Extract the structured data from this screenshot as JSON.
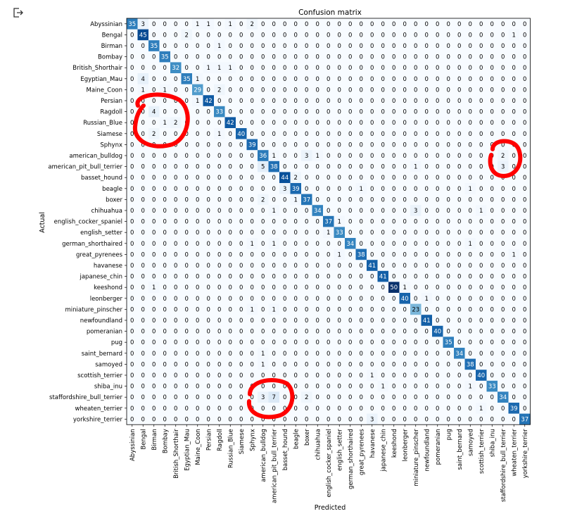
{
  "toolbar": {
    "output_icon": "output-exit-icon"
  },
  "annotation": {
    "color": "#ff0000",
    "shape": "hand-drawn-circle",
    "count": 3
  },
  "chart_data": {
    "type": "heatmap",
    "title": "Confusion matrix",
    "xlabel": "Predicted",
    "ylabel": "Actual",
    "colormap": "Blues",
    "labels": [
      "Abyssinian",
      "Bengal",
      "Birman",
      "Bombay",
      "British_Shorthair",
      "Egyptian_Mau",
      "Maine_Coon",
      "Persian",
      "Ragdoll",
      "Russian_Blue",
      "Siamese",
      "Sphynx",
      "american_bulldog",
      "american_pit_bull_terrier",
      "basset_hound",
      "beagle",
      "boxer",
      "chihuahua",
      "english_cocker_spaniel",
      "english_setter",
      "german_shorthaired",
      "great_pyrenees",
      "havanese",
      "japanese_chin",
      "keeshond",
      "leonberger",
      "miniature_pinscher",
      "newfoundland",
      "pomeranian",
      "pug",
      "saint_bernard",
      "samoyed",
      "scottish_terrier",
      "shiba_inu",
      "staffordshire_bull_terrier",
      "wheaten_terrier",
      "yorkshire_terrier"
    ],
    "matrix": [
      [
        35,
        3,
        0,
        0,
        0,
        0,
        1,
        1,
        0,
        1,
        0,
        2,
        0,
        0,
        0,
        0,
        0,
        0,
        0,
        0,
        0,
        0,
        0,
        0,
        0,
        0,
        0,
        0,
        0,
        0,
        0,
        0,
        0,
        0,
        0,
        0,
        0
      ],
      [
        0,
        45,
        0,
        0,
        0,
        2,
        0,
        0,
        0,
        0,
        0,
        0,
        0,
        0,
        0,
        0,
        0,
        0,
        0,
        0,
        0,
        0,
        0,
        0,
        0,
        0,
        0,
        0,
        0,
        0,
        0,
        0,
        0,
        0,
        0,
        1,
        0
      ],
      [
        0,
        0,
        35,
        0,
        0,
        0,
        0,
        0,
        1,
        0,
        0,
        0,
        0,
        0,
        0,
        0,
        0,
        0,
        0,
        0,
        0,
        0,
        0,
        0,
        0,
        0,
        0,
        0,
        0,
        0,
        0,
        0,
        0,
        0,
        0,
        0,
        0
      ],
      [
        0,
        0,
        0,
        35,
        0,
        0,
        0,
        0,
        0,
        0,
        0,
        0,
        0,
        0,
        0,
        0,
        0,
        0,
        0,
        0,
        0,
        0,
        0,
        0,
        0,
        0,
        0,
        0,
        0,
        0,
        0,
        0,
        0,
        0,
        0,
        0,
        0
      ],
      [
        0,
        0,
        0,
        0,
        32,
        0,
        0,
        1,
        1,
        1,
        0,
        0,
        0,
        0,
        0,
        0,
        0,
        0,
        0,
        0,
        0,
        0,
        0,
        0,
        0,
        0,
        0,
        0,
        0,
        0,
        0,
        0,
        0,
        0,
        0,
        0,
        0
      ],
      [
        0,
        4,
        0,
        0,
        0,
        35,
        1,
        0,
        0,
        0,
        0,
        0,
        0,
        0,
        0,
        0,
        0,
        0,
        0,
        0,
        0,
        0,
        0,
        0,
        0,
        0,
        0,
        0,
        0,
        0,
        0,
        0,
        0,
        0,
        0,
        0,
        0
      ],
      [
        0,
        1,
        0,
        1,
        0,
        0,
        29,
        0,
        2,
        0,
        0,
        0,
        0,
        0,
        0,
        0,
        0,
        0,
        0,
        0,
        0,
        0,
        0,
        0,
        0,
        0,
        0,
        0,
        0,
        0,
        0,
        0,
        0,
        0,
        0,
        0,
        0
      ],
      [
        0,
        0,
        0,
        0,
        0,
        0,
        1,
        42,
        0,
        0,
        0,
        0,
        0,
        0,
        0,
        0,
        0,
        0,
        0,
        0,
        0,
        0,
        0,
        0,
        0,
        0,
        0,
        0,
        0,
        0,
        0,
        0,
        0,
        0,
        0,
        0,
        0
      ],
      [
        0,
        0,
        4,
        0,
        0,
        0,
        0,
        0,
        33,
        0,
        0,
        0,
        0,
        0,
        0,
        0,
        0,
        0,
        0,
        0,
        0,
        0,
        0,
        0,
        0,
        0,
        0,
        0,
        0,
        0,
        0,
        0,
        0,
        0,
        0,
        0,
        0
      ],
      [
        0,
        0,
        0,
        1,
        2,
        0,
        0,
        0,
        0,
        42,
        0,
        0,
        0,
        0,
        0,
        0,
        0,
        0,
        0,
        0,
        0,
        0,
        0,
        0,
        0,
        0,
        0,
        0,
        0,
        0,
        0,
        0,
        0,
        0,
        0,
        0,
        0
      ],
      [
        0,
        0,
        2,
        0,
        0,
        0,
        0,
        0,
        1,
        0,
        40,
        0,
        0,
        0,
        0,
        0,
        0,
        0,
        0,
        0,
        0,
        0,
        0,
        0,
        0,
        0,
        0,
        0,
        0,
        0,
        0,
        0,
        0,
        0,
        0,
        0,
        0
      ],
      [
        0,
        0,
        0,
        0,
        0,
        0,
        0,
        0,
        0,
        0,
        0,
        39,
        0,
        0,
        0,
        0,
        0,
        0,
        0,
        0,
        0,
        0,
        0,
        0,
        0,
        0,
        0,
        0,
        0,
        0,
        0,
        0,
        0,
        0,
        0,
        0,
        0
      ],
      [
        0,
        0,
        0,
        0,
        0,
        0,
        0,
        0,
        0,
        0,
        0,
        0,
        36,
        1,
        0,
        0,
        3,
        1,
        0,
        0,
        0,
        0,
        0,
        0,
        0,
        0,
        0,
        0,
        0,
        0,
        0,
        0,
        0,
        0,
        2,
        0,
        0
      ],
      [
        0,
        0,
        0,
        0,
        0,
        0,
        0,
        0,
        0,
        0,
        0,
        0,
        5,
        38,
        0,
        0,
        0,
        0,
        0,
        0,
        0,
        0,
        0,
        0,
        0,
        0,
        1,
        0,
        0,
        0,
        0,
        0,
        0,
        0,
        3,
        0,
        0
      ],
      [
        0,
        0,
        0,
        0,
        0,
        0,
        0,
        0,
        0,
        0,
        0,
        0,
        0,
        0,
        44,
        2,
        0,
        0,
        0,
        0,
        0,
        0,
        0,
        0,
        0,
        0,
        0,
        0,
        0,
        0,
        0,
        0,
        0,
        0,
        0,
        0,
        0
      ],
      [
        0,
        0,
        0,
        0,
        0,
        0,
        0,
        0,
        0,
        0,
        0,
        0,
        0,
        0,
        3,
        39,
        0,
        0,
        0,
        0,
        0,
        1,
        0,
        0,
        0,
        0,
        0,
        0,
        0,
        0,
        0,
        1,
        0,
        0,
        0,
        0,
        0
      ],
      [
        0,
        0,
        0,
        0,
        0,
        0,
        0,
        0,
        0,
        0,
        0,
        0,
        2,
        0,
        0,
        1,
        37,
        0,
        0,
        0,
        0,
        0,
        0,
        0,
        0,
        0,
        0,
        0,
        0,
        0,
        0,
        0,
        0,
        0,
        0,
        0,
        0
      ],
      [
        0,
        0,
        0,
        0,
        0,
        0,
        0,
        0,
        0,
        0,
        0,
        0,
        0,
        1,
        0,
        0,
        0,
        34,
        0,
        0,
        0,
        0,
        0,
        0,
        0,
        0,
        3,
        0,
        0,
        0,
        0,
        0,
        1,
        0,
        0,
        0,
        0
      ],
      [
        0,
        0,
        0,
        0,
        0,
        0,
        0,
        0,
        0,
        0,
        0,
        0,
        0,
        0,
        0,
        0,
        0,
        0,
        37,
        1,
        0,
        0,
        0,
        0,
        0,
        0,
        0,
        0,
        0,
        0,
        0,
        0,
        0,
        0,
        0,
        0,
        0
      ],
      [
        0,
        0,
        0,
        0,
        0,
        0,
        0,
        0,
        0,
        0,
        0,
        0,
        0,
        0,
        0,
        0,
        0,
        0,
        1,
        33,
        0,
        0,
        0,
        0,
        0,
        0,
        0,
        0,
        0,
        0,
        0,
        0,
        0,
        0,
        0,
        0,
        0
      ],
      [
        0,
        0,
        0,
        0,
        0,
        0,
        0,
        0,
        0,
        0,
        0,
        1,
        0,
        1,
        0,
        0,
        0,
        0,
        0,
        0,
        34,
        0,
        0,
        0,
        0,
        0,
        0,
        0,
        0,
        0,
        0,
        1,
        0,
        0,
        0,
        0,
        0
      ],
      [
        0,
        0,
        0,
        0,
        0,
        0,
        0,
        0,
        0,
        0,
        0,
        0,
        0,
        0,
        0,
        0,
        0,
        0,
        0,
        1,
        0,
        38,
        0,
        0,
        0,
        0,
        0,
        0,
        0,
        0,
        0,
        0,
        0,
        0,
        0,
        1,
        0
      ],
      [
        0,
        0,
        0,
        0,
        0,
        0,
        0,
        0,
        0,
        0,
        0,
        0,
        0,
        0,
        0,
        0,
        0,
        0,
        0,
        0,
        0,
        0,
        41,
        0,
        0,
        0,
        0,
        0,
        0,
        0,
        0,
        0,
        0,
        0,
        0,
        0,
        0
      ],
      [
        0,
        0,
        0,
        0,
        0,
        0,
        0,
        0,
        0,
        0,
        0,
        0,
        0,
        0,
        0,
        0,
        0,
        0,
        0,
        0,
        0,
        0,
        0,
        41,
        0,
        0,
        0,
        0,
        0,
        0,
        0,
        0,
        0,
        0,
        0,
        0,
        0
      ],
      [
        0,
        0,
        1,
        0,
        0,
        0,
        0,
        0,
        0,
        0,
        0,
        0,
        0,
        0,
        0,
        0,
        0,
        0,
        0,
        0,
        0,
        0,
        0,
        0,
        50,
        1,
        0,
        0,
        0,
        0,
        0,
        0,
        0,
        0,
        0,
        0,
        0
      ],
      [
        0,
        0,
        0,
        0,
        0,
        0,
        0,
        0,
        0,
        0,
        0,
        0,
        0,
        0,
        0,
        0,
        0,
        0,
        0,
        0,
        0,
        0,
        0,
        0,
        0,
        40,
        0,
        1,
        0,
        0,
        0,
        0,
        0,
        0,
        0,
        0,
        0
      ],
      [
        0,
        0,
        0,
        0,
        0,
        0,
        0,
        0,
        0,
        0,
        0,
        1,
        0,
        1,
        0,
        0,
        0,
        0,
        0,
        0,
        0,
        0,
        0,
        0,
        0,
        0,
        23,
        0,
        0,
        0,
        0,
        0,
        0,
        0,
        0,
        0,
        0
      ],
      [
        0,
        0,
        0,
        0,
        0,
        0,
        0,
        0,
        0,
        0,
        0,
        0,
        0,
        0,
        0,
        0,
        0,
        0,
        0,
        0,
        0,
        0,
        0,
        0,
        0,
        0,
        0,
        41,
        0,
        0,
        0,
        0,
        0,
        0,
        0,
        0,
        0
      ],
      [
        0,
        0,
        0,
        0,
        0,
        0,
        0,
        0,
        0,
        0,
        0,
        0,
        0,
        0,
        0,
        0,
        0,
        0,
        0,
        0,
        0,
        0,
        0,
        0,
        0,
        0,
        0,
        0,
        40,
        0,
        0,
        0,
        0,
        0,
        0,
        0,
        0
      ],
      [
        0,
        0,
        0,
        0,
        0,
        0,
        0,
        0,
        0,
        0,
        0,
        0,
        0,
        0,
        0,
        0,
        0,
        0,
        0,
        0,
        0,
        0,
        0,
        0,
        0,
        0,
        0,
        0,
        0,
        35,
        0,
        0,
        0,
        0,
        0,
        0,
        0
      ],
      [
        0,
        0,
        0,
        0,
        0,
        0,
        0,
        0,
        0,
        0,
        0,
        0,
        1,
        0,
        0,
        0,
        0,
        0,
        0,
        0,
        0,
        0,
        0,
        0,
        0,
        0,
        0,
        0,
        0,
        0,
        34,
        0,
        0,
        0,
        0,
        0,
        0
      ],
      [
        0,
        0,
        0,
        0,
        0,
        0,
        0,
        0,
        0,
        0,
        0,
        0,
        1,
        0,
        0,
        0,
        0,
        0,
        0,
        0,
        0,
        0,
        0,
        0,
        0,
        0,
        0,
        0,
        0,
        0,
        0,
        38,
        0,
        0,
        0,
        0,
        0
      ],
      [
        0,
        0,
        0,
        0,
        0,
        0,
        0,
        0,
        0,
        0,
        0,
        0,
        0,
        0,
        0,
        0,
        0,
        0,
        0,
        0,
        0,
        0,
        1,
        0,
        0,
        0,
        0,
        0,
        0,
        0,
        0,
        0,
        40,
        0,
        0,
        0,
        0
      ],
      [
        0,
        0,
        0,
        0,
        0,
        0,
        0,
        0,
        0,
        0,
        0,
        0,
        0,
        0,
        0,
        0,
        0,
        0,
        0,
        0,
        0,
        0,
        0,
        1,
        0,
        0,
        0,
        0,
        0,
        0,
        0,
        1,
        0,
        33,
        0,
        0,
        0
      ],
      [
        0,
        0,
        0,
        0,
        0,
        0,
        0,
        0,
        0,
        0,
        0,
        0,
        3,
        7,
        0,
        0,
        2,
        0,
        0,
        0,
        0,
        0,
        0,
        0,
        0,
        0,
        0,
        0,
        0,
        0,
        0,
        0,
        0,
        0,
        34,
        0,
        0
      ],
      [
        0,
        0,
        0,
        0,
        0,
        0,
        0,
        0,
        0,
        0,
        0,
        0,
        0,
        0,
        0,
        0,
        0,
        0,
        0,
        0,
        0,
        0,
        0,
        0,
        0,
        0,
        0,
        0,
        0,
        0,
        0,
        0,
        1,
        0,
        0,
        39,
        0
      ],
      [
        0,
        0,
        0,
        0,
        0,
        0,
        0,
        0,
        0,
        0,
        0,
        0,
        0,
        0,
        0,
        0,
        0,
        0,
        0,
        0,
        0,
        0,
        3,
        0,
        0,
        0,
        0,
        0,
        0,
        0,
        0,
        0,
        0,
        0,
        0,
        0,
        37
      ]
    ],
    "vmin": 0,
    "vmax": 50,
    "grid": false
  }
}
